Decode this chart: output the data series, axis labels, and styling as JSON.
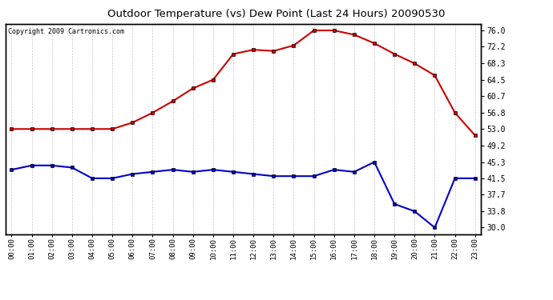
{
  "title": "Outdoor Temperature (vs) Dew Point (Last 24 Hours) 20090530",
  "copyright": "Copyright 2009 Cartronics.com",
  "hours": [
    0,
    1,
    2,
    3,
    4,
    5,
    6,
    7,
    8,
    9,
    10,
    11,
    12,
    13,
    14,
    15,
    16,
    17,
    18,
    19,
    20,
    21,
    22,
    23
  ],
  "temp": [
    53.0,
    53.0,
    53.0,
    53.0,
    53.0,
    53.0,
    54.5,
    56.8,
    59.5,
    62.5,
    64.5,
    70.5,
    71.5,
    71.2,
    72.5,
    76.0,
    76.0,
    75.0,
    73.0,
    70.5,
    68.3,
    65.5,
    56.8,
    51.5
  ],
  "dew": [
    43.5,
    44.5,
    44.5,
    44.0,
    41.5,
    41.5,
    42.5,
    43.0,
    43.5,
    43.0,
    43.5,
    43.0,
    42.5,
    42.0,
    42.0,
    42.0,
    43.5,
    43.0,
    45.3,
    35.5,
    33.8,
    30.0,
    41.5,
    41.5
  ],
  "temp_color": "#cc0000",
  "dew_color": "#0000cc",
  "background_color": "#ffffff",
  "grid_color": "#c8c8c8",
  "yticks": [
    30.0,
    33.8,
    37.7,
    41.5,
    45.3,
    49.2,
    53.0,
    56.8,
    60.7,
    64.5,
    68.3,
    72.2,
    76.0
  ],
  "ylim": [
    28.5,
    77.5
  ],
  "markersize": 3.5,
  "linewidth": 1.5
}
